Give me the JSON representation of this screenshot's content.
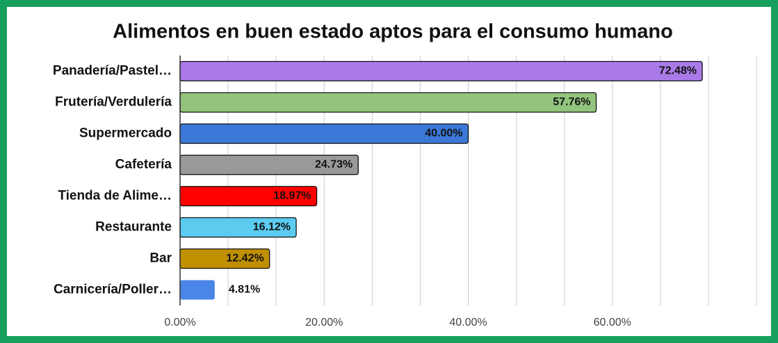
{
  "chart_data": {
    "type": "bar",
    "orientation": "horizontal",
    "title": "Alimentos en buen estado aptos para el consumo humano",
    "categories": [
      "Panadería/Pastel…",
      "Frutería/Verdulería",
      "Supermercado",
      "Cafetería",
      "Tienda de Alime…",
      "Restaurante",
      "Bar",
      "Carnicería/Poller…"
    ],
    "values": [
      72.48,
      57.76,
      40.0,
      24.73,
      18.97,
      16.12,
      12.42,
      4.81
    ],
    "value_labels": [
      "72.48%",
      "57.76%",
      "40.00%",
      "24.73%",
      "18.97%",
      "16.12%",
      "12.42%",
      "4.81%"
    ],
    "colors": [
      "#a97ae8",
      "#93c47d",
      "#3c78d8",
      "#999999",
      "#ff0000",
      "#5bcbf0",
      "#bf9000",
      "#4a86e8"
    ],
    "bar_borders": [
      true,
      true,
      true,
      true,
      true,
      true,
      true,
      false
    ],
    "xlim": [
      0,
      80
    ],
    "xticks": [
      {
        "value": 0,
        "label": "0.00%"
      },
      {
        "value": 20,
        "label": "20.00%"
      },
      {
        "value": 40,
        "label": "40.00%"
      },
      {
        "value": 60,
        "label": "60.00%"
      }
    ],
    "xminorticks": [
      6.67,
      13.33,
      26.67,
      33.33,
      46.67,
      53.33,
      66.67,
      73.33,
      80
    ],
    "grid": true
  }
}
